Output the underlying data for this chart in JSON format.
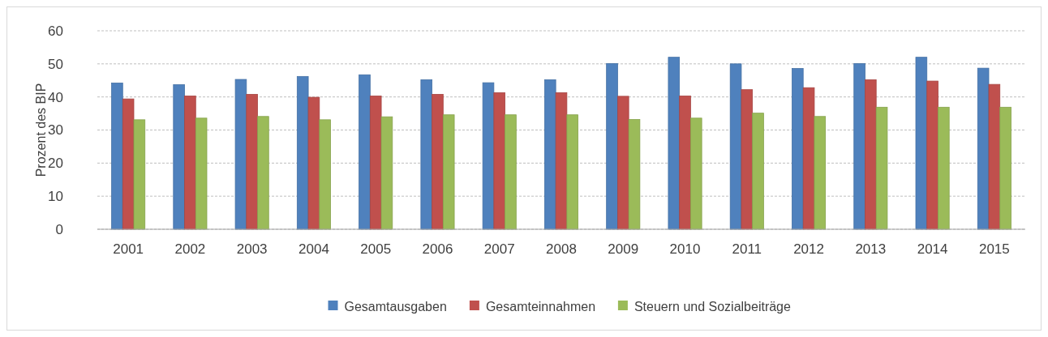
{
  "chart_data": {
    "type": "bar",
    "ylabel": "Prozent des BIP",
    "categories": [
      "2001",
      "2002",
      "2003",
      "2004",
      "2005",
      "2006",
      "2007",
      "2008",
      "2009",
      "2010",
      "2011",
      "2012",
      "2013",
      "2014",
      "2015"
    ],
    "series": [
      {
        "name": "Gesamtausgaben",
        "color": "#4f81bd",
        "values": [
          44.2,
          43.7,
          45.3,
          46.2,
          46.7,
          45.2,
          44.3,
          45.2,
          50.1,
          52.0,
          50.0,
          48.6,
          50.1,
          52.0,
          48.7
        ]
      },
      {
        "name": "Gesamteinnahmen",
        "color": "#c0504d",
        "values": [
          39.4,
          40.3,
          40.8,
          39.9,
          40.3,
          40.8,
          41.3,
          41.3,
          40.2,
          40.3,
          42.2,
          42.8,
          45.2,
          44.8,
          43.8
        ]
      },
      {
        "name": "Steuern und Sozialbeiträge",
        "color": "#9bbb59",
        "values": [
          33.1,
          33.6,
          34.1,
          33.1,
          34.0,
          34.6,
          34.6,
          34.6,
          33.2,
          33.6,
          35.1,
          34.1,
          36.9,
          36.9,
          36.9
        ]
      }
    ],
    "ylim": [
      0,
      60
    ],
    "yticks": [
      0,
      10,
      20,
      30,
      40,
      50,
      60
    ],
    "grid": "y",
    "legend": "bottom"
  }
}
